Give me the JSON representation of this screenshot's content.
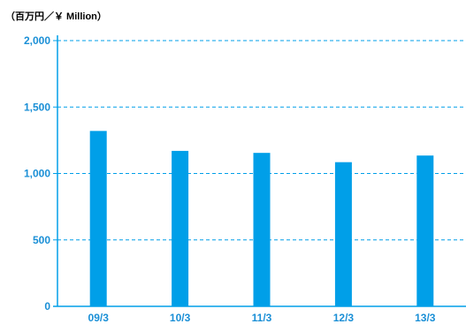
{
  "chart_data": {
    "type": "bar",
    "unit_label": "（百万円／￥ Million）",
    "categories": [
      "09/3",
      "10/3",
      "11/3",
      "12/3",
      "13/3"
    ],
    "values": [
      1320,
      1170,
      1155,
      1085,
      1135
    ],
    "ylim": [
      0,
      2000
    ],
    "yticks": [
      0,
      500,
      1000,
      1500,
      2000
    ],
    "ytick_labels": [
      "0",
      "500",
      "1,000",
      "1,500",
      "2,000"
    ],
    "grid": true,
    "colors": {
      "bar": "#009fe8",
      "text": "#1a8fd6",
      "axis": "#009fe8"
    }
  }
}
